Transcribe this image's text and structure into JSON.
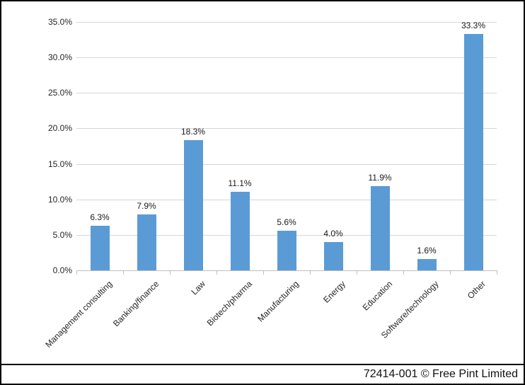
{
  "chart_data": {
    "type": "bar",
    "categories": [
      "Management consulting",
      "Banking/finance",
      "Law",
      "Biotech/pharma",
      "Manufacturing",
      "Energy",
      "Education",
      "Software/technology",
      "Other"
    ],
    "values": [
      6.3,
      7.9,
      18.3,
      11.1,
      5.6,
      4.0,
      11.9,
      1.6,
      33.3
    ],
    "value_labels": [
      "6.3%",
      "7.9%",
      "18.3%",
      "11.1%",
      "5.6%",
      "4.0%",
      "11.9%",
      "1.6%",
      "33.3%"
    ],
    "title": "",
    "xlabel": "",
    "ylabel": "",
    "ylim": [
      0,
      35
    ],
    "ytick_step": 5,
    "ytick_labels": [
      "0.0%",
      "5.0%",
      "10.0%",
      "15.0%",
      "20.0%",
      "25.0%",
      "30.0%",
      "35.0%"
    ],
    "grid": true,
    "legend": "none",
    "bar_color": "#5b9bd5",
    "gridline_color": "#d6d6d6",
    "axis_color": "#bfbfbf",
    "label_color": "#262626"
  },
  "footer": {
    "credit": "72414-001 © Free Pint Limited"
  }
}
